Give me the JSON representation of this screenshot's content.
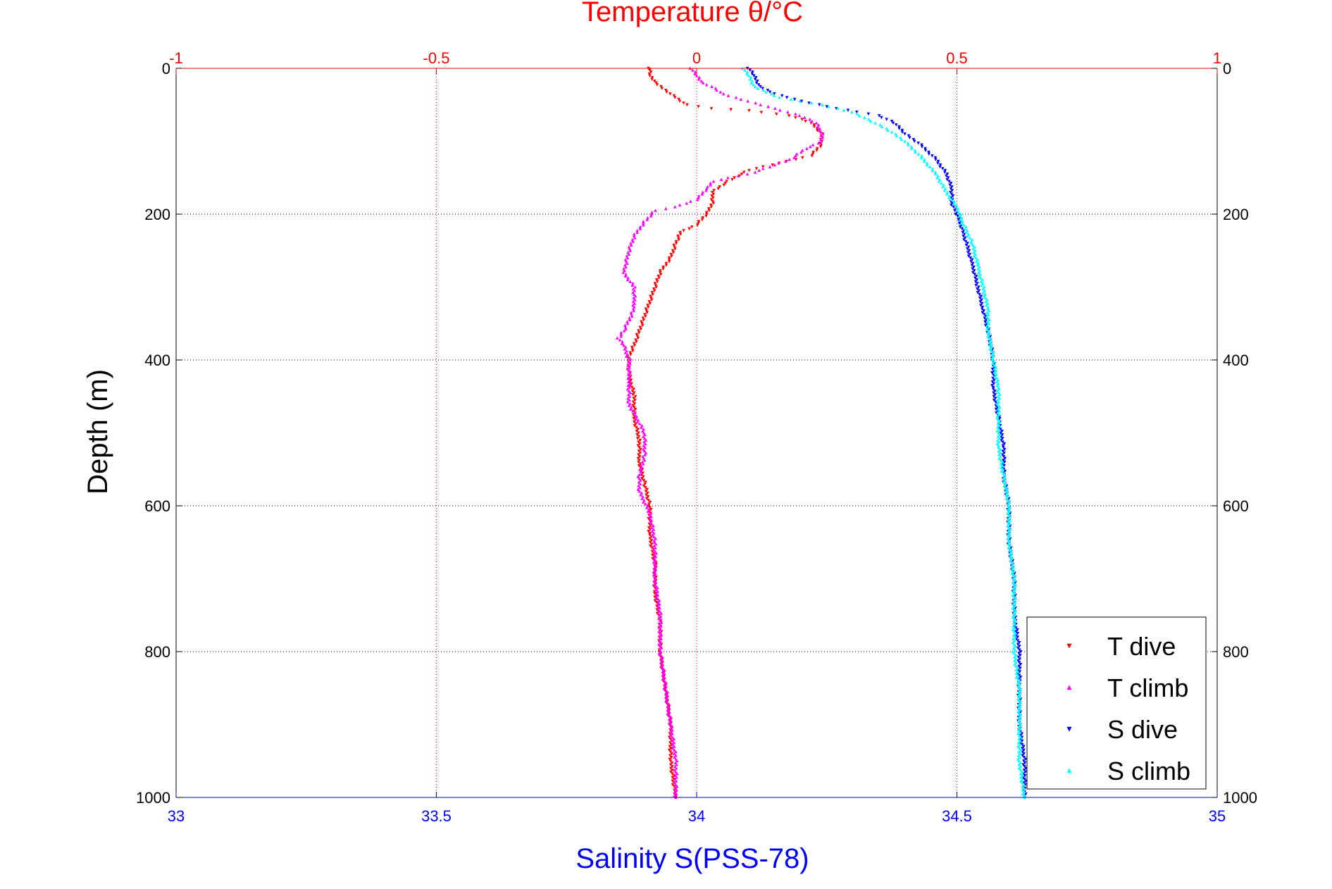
{
  "chart_data": {
    "type": "scatter",
    "title": "Temperature θ/°C",
    "xlabel_bottom": "Salinity S(PSS-78)",
    "xlabel_top": "Temperature θ/°C",
    "ylabel": "Depth (m)",
    "y_reversed": true,
    "ylim": [
      0,
      1000
    ],
    "yticks": [
      0,
      200,
      400,
      600,
      800,
      1000
    ],
    "xlim_bottom": [
      33,
      35
    ],
    "xticks_bottom": [
      33,
      33.5,
      34,
      34.5,
      35
    ],
    "xlim_top": [
      -1,
      1
    ],
    "xticks_top": [
      -1,
      -0.5,
      0,
      0.5,
      1
    ],
    "grid": true,
    "legend_position": "bottom-right",
    "colors": {
      "temperature_axis": "#ff0000",
      "salinity_axis": "#0000ff",
      "grid_temperature": "#ff0000",
      "grid_depth": "#000000"
    },
    "series": [
      {
        "name": "T dive",
        "axis": "top",
        "color": "#ff0000",
        "marker": "triangle-down",
        "points": [
          [
            -0.09,
            0
          ],
          [
            -0.09,
            10
          ],
          [
            -0.08,
            20
          ],
          [
            -0.05,
            35
          ],
          [
            -0.02,
            50
          ],
          [
            0.03,
            55
          ],
          [
            0.1,
            58
          ],
          [
            0.18,
            65
          ],
          [
            0.22,
            75
          ],
          [
            0.24,
            90
          ],
          [
            0.24,
            105
          ],
          [
            0.22,
            120
          ],
          [
            0.16,
            130
          ],
          [
            0.1,
            140
          ],
          [
            0.06,
            155
          ],
          [
            0.03,
            170
          ],
          [
            0.03,
            185
          ],
          [
            0.02,
            200
          ],
          [
            0.0,
            215
          ],
          [
            -0.03,
            225
          ],
          [
            -0.04,
            240
          ],
          [
            -0.05,
            260
          ],
          [
            -0.07,
            280
          ],
          [
            -0.08,
            300
          ],
          [
            -0.09,
            320
          ],
          [
            -0.1,
            340
          ],
          [
            -0.11,
            360
          ],
          [
            -0.12,
            380
          ],
          [
            -0.13,
            395
          ],
          [
            -0.13,
            420
          ],
          [
            -0.12,
            450
          ],
          [
            -0.12,
            480
          ],
          [
            -0.11,
            510
          ],
          [
            -0.11,
            540
          ],
          [
            -0.1,
            570
          ],
          [
            -0.09,
            600
          ],
          [
            -0.09,
            640
          ],
          [
            -0.08,
            680
          ],
          [
            -0.08,
            720
          ],
          [
            -0.07,
            760
          ],
          [
            -0.07,
            800
          ],
          [
            -0.06,
            850
          ],
          [
            -0.05,
            900
          ],
          [
            -0.05,
            950
          ],
          [
            -0.04,
            1000
          ]
        ]
      },
      {
        "name": "T climb",
        "axis": "top",
        "color": "#ff00ff",
        "marker": "triangle-up",
        "points": [
          [
            -0.01,
            0
          ],
          [
            0.0,
            10
          ],
          [
            0.01,
            20
          ],
          [
            0.03,
            25
          ],
          [
            0.05,
            35
          ],
          [
            0.1,
            45
          ],
          [
            0.15,
            55
          ],
          [
            0.2,
            65
          ],
          [
            0.23,
            75
          ],
          [
            0.24,
            90
          ],
          [
            0.24,
            100
          ],
          [
            0.21,
            110
          ],
          [
            0.18,
            125
          ],
          [
            0.14,
            135
          ],
          [
            0.1,
            145
          ],
          [
            0.06,
            150
          ],
          [
            0.03,
            155
          ],
          [
            0.02,
            165
          ],
          [
            0.0,
            180
          ],
          [
            -0.04,
            190
          ],
          [
            -0.08,
            195
          ],
          [
            -0.1,
            210
          ],
          [
            -0.12,
            230
          ],
          [
            -0.13,
            250
          ],
          [
            -0.14,
            280
          ],
          [
            -0.12,
            300
          ],
          [
            -0.12,
            330
          ],
          [
            -0.14,
            360
          ],
          [
            -0.15,
            370
          ],
          [
            -0.14,
            380
          ],
          [
            -0.13,
            400
          ],
          [
            -0.13,
            430
          ],
          [
            -0.13,
            460
          ],
          [
            -0.1,
            500
          ],
          [
            -0.1,
            530
          ],
          [
            -0.11,
            560
          ],
          [
            -0.11,
            580
          ],
          [
            -0.09,
            610
          ],
          [
            -0.08,
            650
          ],
          [
            -0.08,
            700
          ],
          [
            -0.07,
            750
          ],
          [
            -0.07,
            800
          ],
          [
            -0.06,
            850
          ],
          [
            -0.05,
            900
          ],
          [
            -0.04,
            950
          ],
          [
            -0.04,
            1000
          ]
        ]
      },
      {
        "name": "S dive",
        "axis": "bottom",
        "color": "#0000ff",
        "marker": "triangle-down",
        "points": [
          [
            34.1,
            0
          ],
          [
            34.11,
            10
          ],
          [
            34.12,
            25
          ],
          [
            34.15,
            35
          ],
          [
            34.2,
            45
          ],
          [
            34.27,
            55
          ],
          [
            34.35,
            65
          ],
          [
            34.38,
            75
          ],
          [
            34.4,
            90
          ],
          [
            34.43,
            105
          ],
          [
            34.46,
            125
          ],
          [
            34.48,
            145
          ],
          [
            34.49,
            165
          ],
          [
            34.49,
            185
          ],
          [
            34.5,
            200
          ],
          [
            34.51,
            220
          ],
          [
            34.52,
            245
          ],
          [
            34.53,
            270
          ],
          [
            34.54,
            300
          ],
          [
            34.55,
            330
          ],
          [
            34.56,
            360
          ],
          [
            34.57,
            400
          ],
          [
            34.57,
            440
          ],
          [
            34.58,
            480
          ],
          [
            34.59,
            520
          ],
          [
            34.59,
            560
          ],
          [
            34.6,
            600
          ],
          [
            34.6,
            650
          ],
          [
            34.61,
            700
          ],
          [
            34.61,
            750
          ],
          [
            34.62,
            800
          ],
          [
            34.62,
            850
          ],
          [
            34.62,
            900
          ],
          [
            34.63,
            950
          ],
          [
            34.63,
            1000
          ]
        ]
      },
      {
        "name": "S climb",
        "axis": "bottom",
        "color": "#00ffff",
        "marker": "triangle-up",
        "points": [
          [
            34.09,
            0
          ],
          [
            34.1,
            10
          ],
          [
            34.11,
            25
          ],
          [
            34.16,
            40
          ],
          [
            34.24,
            50
          ],
          [
            34.3,
            60
          ],
          [
            34.33,
            70
          ],
          [
            34.37,
            85
          ],
          [
            34.4,
            100
          ],
          [
            34.43,
            120
          ],
          [
            34.46,
            145
          ],
          [
            34.48,
            170
          ],
          [
            34.5,
            190
          ],
          [
            34.51,
            210
          ],
          [
            34.53,
            240
          ],
          [
            34.54,
            270
          ],
          [
            34.55,
            300
          ],
          [
            34.56,
            330
          ],
          [
            34.56,
            360
          ],
          [
            34.57,
            400
          ],
          [
            34.58,
            440
          ],
          [
            34.58,
            480
          ],
          [
            34.58,
            520
          ],
          [
            34.59,
            560
          ],
          [
            34.6,
            600
          ],
          [
            34.6,
            650
          ],
          [
            34.61,
            700
          ],
          [
            34.61,
            750
          ],
          [
            34.61,
            800
          ],
          [
            34.62,
            850
          ],
          [
            34.62,
            900
          ],
          [
            34.62,
            950
          ],
          [
            34.63,
            1000
          ]
        ]
      }
    ]
  },
  "legend": {
    "items": [
      {
        "label": "T dive",
        "color": "#ff0000",
        "marker": "triangle-down"
      },
      {
        "label": "T climb",
        "color": "#ff00ff",
        "marker": "triangle-up"
      },
      {
        "label": "S dive",
        "color": "#0000ff",
        "marker": "triangle-down"
      },
      {
        "label": "S climb",
        "color": "#00ffff",
        "marker": "triangle-up"
      }
    ]
  }
}
